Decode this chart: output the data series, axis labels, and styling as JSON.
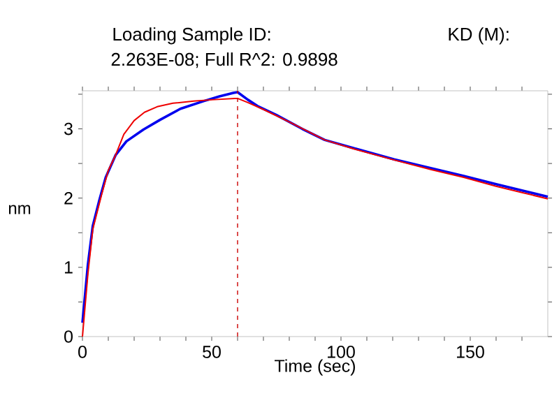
{
  "chart_data": {
    "type": "line",
    "title": "Loading Sample ID:",
    "subtitle": "2.263E-08; Full R^2: 0.9898",
    "annotations": [
      "KD (M):"
    ],
    "xlabel": "Time (sec)",
    "ylabel": "nm",
    "xlim": [
      0,
      180
    ],
    "ylim": [
      0,
      3.55
    ],
    "xticks": [
      0,
      {
        "value": 10,
        "label": null
      },
      {
        "value": 20,
        "label": null
      },
      {
        "value": 30,
        "label": null
      },
      {
        "value": 40,
        "label": null
      },
      50,
      {
        "value": 60,
        "label": null
      },
      {
        "value": 70,
        "label": null
      },
      {
        "value": 80,
        "label": null
      },
      {
        "value": 90,
        "label": null
      },
      100,
      {
        "value": 110,
        "label": null
      },
      {
        "value": 120,
        "label": null
      },
      {
        "value": 130,
        "label": null
      },
      {
        "value": 140,
        "label": null
      },
      150,
      {
        "value": 160,
        "label": null
      },
      {
        "value": 170,
        "label": null
      }
    ],
    "yticks": [
      0,
      {
        "value": 0.5,
        "label": null
      },
      1,
      {
        "value": 1.5,
        "label": null
      },
      2,
      {
        "value": 2.5,
        "label": null
      },
      3,
      {
        "value": 3.5,
        "label": null
      }
    ],
    "marker": "none",
    "ref_lines": [
      {
        "axis": "x",
        "value": 60,
        "color": "#cc0000",
        "line_style": "dashed"
      }
    ],
    "series": [
      {
        "color": "#0000ee",
        "x": [
          0,
          2.1,
          4,
          6.6,
          9,
          12.8,
          17,
          23.6,
          30,
          37.9,
          46.8,
          53,
          58.4,
          60,
          64,
          67.7,
          75,
          85,
          93.7,
          105,
          120.6,
          135,
          147.5,
          160,
          170,
          180
        ],
        "values": [
          0.2,
          1.04,
          1.6,
          1.98,
          2.3,
          2.62,
          2.82,
          2.99,
          3.13,
          3.29,
          3.4,
          3.47,
          3.52,
          3.53,
          3.42,
          3.33,
          3.2,
          3.0,
          2.84,
          2.72,
          2.56,
          2.43,
          2.32,
          2.2,
          2.11,
          2.02
        ]
      },
      {
        "color": "#ee0000",
        "x": [
          0,
          2.1,
          4,
          7.4,
          10,
          12.8,
          16,
          20,
          24,
          28.9,
          35,
          43,
          50,
          58.9,
          60,
          64,
          70,
          80,
          93.7,
          105,
          120.6,
          135,
          147.5,
          160,
          170,
          180
        ],
        "values": [
          0,
          0.9,
          1.55,
          2.05,
          2.4,
          2.62,
          2.92,
          3.12,
          3.24,
          3.32,
          3.37,
          3.4,
          3.42,
          3.44,
          3.44,
          3.38,
          3.28,
          3.1,
          2.84,
          2.71,
          2.55,
          2.41,
          2.3,
          2.17,
          2.08,
          1.99
        ]
      }
    ]
  }
}
